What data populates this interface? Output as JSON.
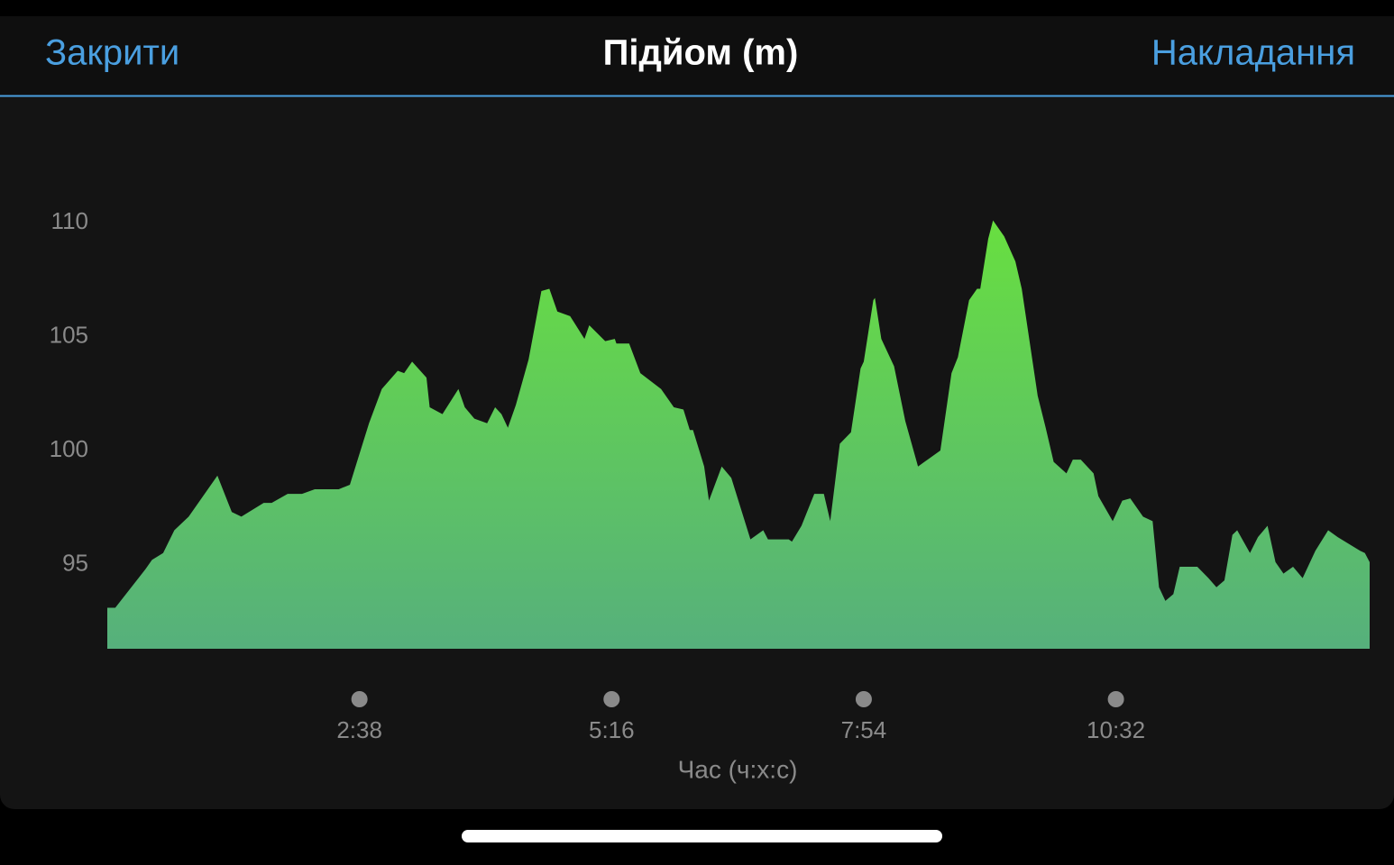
{
  "header": {
    "close": "Закрити",
    "overlay": "Накладання"
  },
  "chart_data": {
    "type": "area",
    "title": "Підйом (m)",
    "x_label": "Час (ч:х:с)",
    "x": [
      0,
      5,
      24,
      28,
      35,
      42,
      51,
      69,
      78,
      84,
      98,
      103,
      113,
      122,
      130,
      145,
      152,
      164,
      172,
      182,
      186,
      191,
      200,
      202,
      210,
      220,
      224,
      230,
      238,
      243,
      247,
      251,
      256,
      264,
      272,
      277,
      282,
      290,
      299,
      302,
      312,
      318,
      319,
      327,
      334,
      347,
      355,
      361,
      365,
      367,
      374,
      377,
      385,
      391,
      403,
      411,
      414,
      427,
      429,
      435,
      443,
      449,
      453,
      459,
      466,
      472,
      474,
      480,
      481,
      485,
      493,
      500,
      508,
      512,
      522,
      529,
      533,
      540,
      545,
      547,
      552,
      555,
      562,
      569,
      573,
      583,
      588,
      593,
      601,
      605,
      610,
      618,
      621,
      630,
      636,
      641,
      649,
      655,
      659,
      663,
      668,
      672,
      683,
      690,
      695,
      700,
      705,
      708,
      716,
      721,
      727,
      732,
      737,
      743,
      749,
      757,
      765,
      771,
      785,
      788,
      791
    ],
    "values": [
      93.1,
      93.1,
      94.8,
      95.2,
      95.5,
      96.5,
      97.1,
      98.9,
      97.3,
      97.1,
      97.7,
      97.7,
      98.1,
      98.1,
      98.3,
      98.3,
      98.5,
      101.2,
      102.7,
      103.5,
      103.4,
      103.9,
      103.2,
      101.9,
      101.6,
      102.7,
      101.9,
      101.4,
      101.2,
      101.9,
      101.6,
      101.0,
      102.0,
      104.0,
      107.0,
      107.1,
      106.1,
      105.9,
      104.9,
      105.5,
      104.8,
      104.9,
      104.7,
      104.7,
      103.4,
      102.7,
      101.9,
      101.8,
      100.9,
      100.9,
      99.3,
      97.8,
      99.3,
      98.8,
      96.1,
      96.5,
      96.1,
      96.1,
      96.0,
      96.7,
      98.1,
      98.1,
      96.9,
      100.3,
      100.8,
      103.6,
      103.9,
      106.6,
      106.7,
      104.9,
      103.7,
      101.3,
      99.3,
      99.5,
      100.0,
      103.4,
      104.1,
      106.6,
      107.1,
      107.1,
      109.3,
      110.1,
      109.4,
      108.3,
      107.1,
      102.4,
      101.0,
      99.5,
      99.0,
      99.6,
      99.6,
      99.0,
      98.0,
      96.9,
      97.8,
      97.9,
      97.1,
      96.9,
      94.0,
      93.4,
      93.7,
      94.9,
      94.9,
      94.4,
      94.0,
      94.3,
      96.3,
      96.5,
      95.5,
      96.2,
      96.7,
      95.1,
      94.6,
      94.9,
      94.4,
      95.6,
      96.5,
      96.2,
      95.6,
      95.5,
      95.1
    ],
    "xlim": [
      0,
      791
    ],
    "xticks": [
      {
        "value": 158,
        "label": "2:38"
      },
      {
        "value": 316,
        "label": "5:16"
      },
      {
        "value": 474,
        "label": "7:54"
      },
      {
        "value": 632,
        "label": "10:32"
      }
    ],
    "ylim": [
      91.3,
      114.2
    ],
    "yticks": [
      95,
      100,
      105,
      110
    ],
    "colors": {
      "top": "#68df40",
      "bottom": "#56b07c"
    },
    "grid": false
  }
}
